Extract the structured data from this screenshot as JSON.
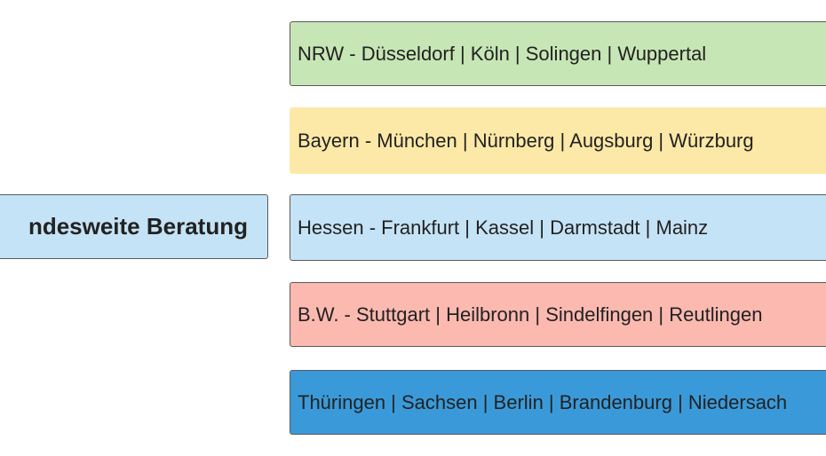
{
  "root": {
    "label": "ndesweite Beratung"
  },
  "branches": [
    {
      "label": "NRW - Düsseldorf | Köln | Solingen | Wuppertal"
    },
    {
      "label": "Bayern - München | Nürnberg | Augsburg | Würzburg"
    },
    {
      "label": "Hessen - Frankfurt | Kassel | Darmstadt | Mainz"
    },
    {
      "label": "B.W. - Stuttgart | Heilbronn | Sindelfingen | Reutlingen"
    },
    {
      "label": "Thüringen | Sachsen | Berlin | Brandenburg | Niedersach"
    }
  ]
}
